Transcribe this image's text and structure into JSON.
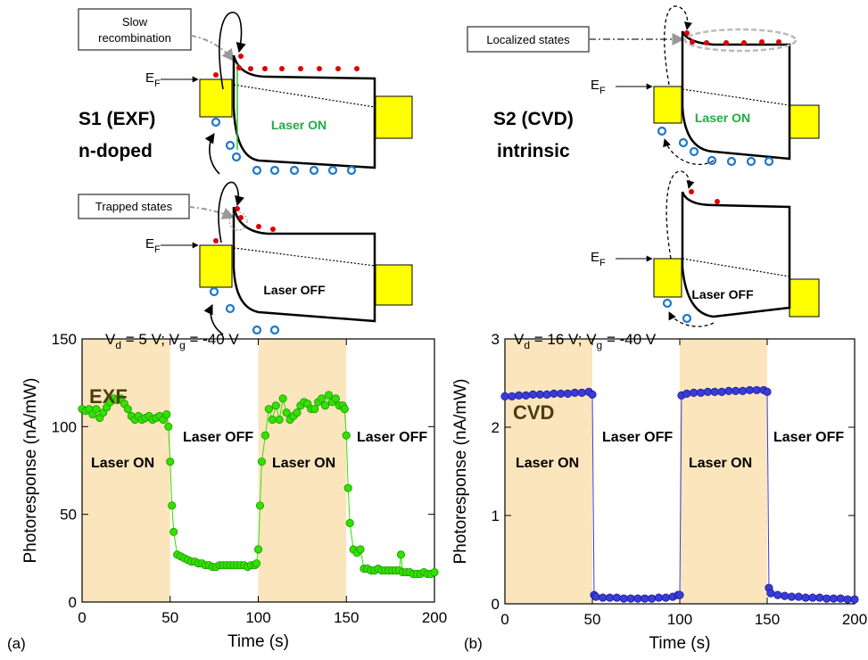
{
  "chart_data": [
    {
      "type": "line",
      "panel": "(a)",
      "xlabel": "Time (s)",
      "ylabel": "Photoresponse (nA/mW)",
      "condition": [
        "V",
        "d",
        " = 5 V; V",
        "g",
        " = -40 V"
      ],
      "annotations": [
        "EXF",
        "Laser ON",
        "Laser OFF",
        "Laser ON",
        "Laser OFF"
      ],
      "highlight_spans": [
        [
          0,
          50
        ],
        [
          100,
          150
        ]
      ],
      "highlight_color": "#fbe5bd",
      "color": "#33e000",
      "edge_color": "#1c9a00",
      "xlim": [
        0,
        200
      ],
      "xticks": [
        0,
        50,
        100,
        150,
        200
      ],
      "ylim": [
        0,
        150
      ],
      "yticks": [
        0,
        50,
        100,
        150
      ],
      "x": [
        0,
        2,
        4,
        6,
        8,
        10,
        12,
        14,
        16,
        18,
        20,
        22,
        24,
        26,
        28,
        30,
        32,
        34,
        36,
        38,
        40,
        42,
        44,
        46,
        48,
        49,
        50,
        51,
        52,
        54,
        56,
        58,
        60,
        62,
        64,
        66,
        68,
        70,
        72,
        74,
        76,
        78,
        80,
        82,
        84,
        86,
        88,
        90,
        92,
        94,
        96,
        98,
        99,
        100,
        101,
        102,
        104,
        106,
        108,
        110,
        112,
        114,
        116,
        118,
        120,
        122,
        124,
        126,
        128,
        130,
        132,
        134,
        136,
        138,
        140,
        142,
        144,
        146,
        148,
        149,
        150,
        151,
        152,
        154,
        156,
        158,
        160,
        162,
        164,
        166,
        168,
        170,
        172,
        174,
        176,
        178,
        180,
        181,
        182,
        184,
        186,
        188,
        190,
        192,
        194,
        196,
        198,
        200
      ],
      "values": [
        110,
        109,
        110,
        107,
        110,
        105,
        108,
        111,
        114,
        116,
        115,
        116,
        113,
        110,
        106,
        104,
        106,
        104,
        105,
        106,
        104,
        105,
        106,
        104,
        107,
        100,
        80,
        55,
        40,
        27,
        26,
        25,
        24,
        23,
        23,
        22,
        22,
        21,
        21,
        20,
        20,
        21,
        21,
        21,
        21,
        21,
        21,
        21,
        21,
        20,
        21,
        21,
        22,
        30,
        55,
        80,
        95,
        110,
        104,
        112,
        104,
        116,
        108,
        104,
        106,
        108,
        112,
        114,
        113,
        110,
        110,
        114,
        116,
        112,
        118,
        114,
        116,
        112,
        112,
        110,
        95,
        65,
        45,
        30,
        28,
        30,
        19,
        19,
        18,
        18,
        19,
        18,
        18,
        18,
        18,
        18,
        18,
        27,
        17,
        17,
        17,
        16,
        16,
        16,
        17,
        16,
        16,
        17
      ]
    },
    {
      "type": "line",
      "panel": "(b)",
      "xlabel": "Time (s)",
      "ylabel": "Photoresponse (nA/mW)",
      "condition": [
        "V",
        "d",
        " = 16 V; V",
        "g",
        " = -40 V"
      ],
      "annotations": [
        "CVD",
        "Laser ON",
        "Laser OFF",
        "Laser ON",
        "Laser OFF"
      ],
      "highlight_spans": [
        [
          0,
          50
        ],
        [
          100,
          150
        ]
      ],
      "highlight_color": "#fbe5bd",
      "color": "#3b3bd6",
      "edge_color": "#1a1a99",
      "xlim": [
        0,
        200
      ],
      "xticks": [
        0,
        50,
        100,
        150,
        200
      ],
      "ylim": [
        0,
        3
      ],
      "yticks": [
        0,
        1,
        2,
        3
      ],
      "x": [
        0,
        4,
        8,
        12,
        16,
        20,
        24,
        28,
        32,
        36,
        40,
        44,
        48,
        50,
        51,
        52,
        56,
        60,
        64,
        68,
        72,
        76,
        80,
        84,
        88,
        92,
        96,
        99,
        100,
        101,
        104,
        108,
        112,
        116,
        120,
        124,
        128,
        132,
        136,
        140,
        144,
        148,
        150,
        151,
        152,
        156,
        160,
        164,
        168,
        172,
        176,
        180,
        184,
        188,
        192,
        196,
        200
      ],
      "values": [
        2.35,
        2.35,
        2.36,
        2.36,
        2.37,
        2.37,
        2.37,
        2.38,
        2.38,
        2.38,
        2.39,
        2.39,
        2.4,
        2.37,
        0.1,
        0.08,
        0.07,
        0.07,
        0.07,
        0.06,
        0.06,
        0.06,
        0.06,
        0.06,
        0.07,
        0.07,
        0.08,
        0.1,
        0.1,
        2.36,
        2.38,
        2.39,
        2.39,
        2.4,
        2.4,
        2.4,
        2.41,
        2.41,
        2.41,
        2.42,
        2.42,
        2.42,
        2.4,
        0.18,
        0.12,
        0.1,
        0.09,
        0.08,
        0.08,
        0.07,
        0.07,
        0.07,
        0.06,
        0.06,
        0.06,
        0.05,
        0.05
      ]
    }
  ],
  "diagram": {
    "ef": [
      "E",
      "F"
    ],
    "laser_on": "Laser ON",
    "laser_off": "Laser OFF",
    "left": {
      "title": [
        "S1 (EXF)",
        "n-doped"
      ],
      "slow": [
        "Slow",
        "recombination"
      ],
      "trapped": "Trapped states"
    },
    "right": {
      "title": [
        "S2 (CVD)",
        "intrinsic"
      ],
      "localized": "Localized states"
    }
  }
}
